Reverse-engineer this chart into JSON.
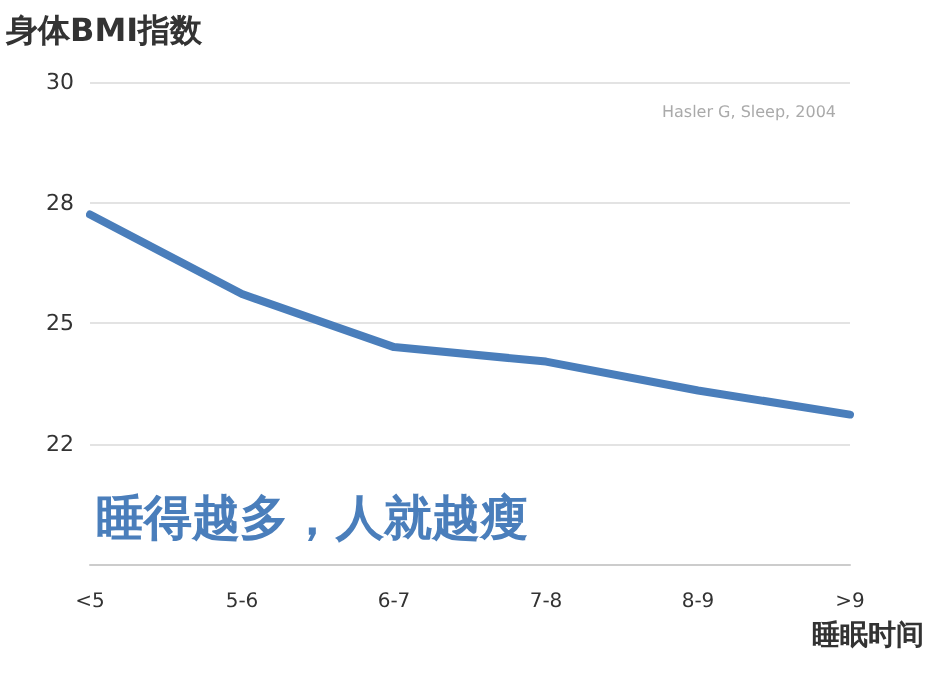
{
  "chart_data": {
    "type": "line",
    "ylabel": "身体BMI指数",
    "xlabel": "睡眠时间",
    "annotations": [
      "Hasler G, Sleep, 2004",
      "睡得越多，人就越瘦"
    ],
    "categories": [
      "<5",
      "5-6",
      "6-7",
      "7-8",
      "8-9",
      ">9"
    ],
    "series": [
      {
        "color": "#4a7ebb",
        "values": [
          27.25,
          25.6,
          24.5,
          24.2,
          23.6,
          23.1
        ]
      }
    ],
    "ylim": [
      20,
      30
    ],
    "yticks": [
      {
        "value": 20,
        "label": null
      },
      {
        "value": 22.5,
        "label": "22"
      },
      25,
      {
        "value": 27.5,
        "label": "28"
      },
      30
    ],
    "grid": "y",
    "marker": "none",
    "line_style": "solid"
  }
}
